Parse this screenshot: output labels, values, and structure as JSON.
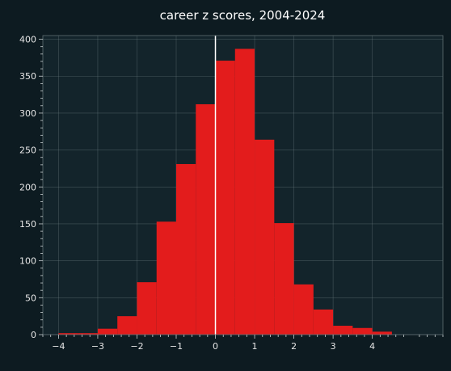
{
  "chart_data": {
    "type": "bar",
    "title": "career z scores, 2004-2024",
    "xlabel": "",
    "ylabel": "",
    "xlim": [
      -4.4,
      5.8
    ],
    "ylim": [
      0,
      405
    ],
    "x_ticks": [
      "−4",
      "−3",
      "−2",
      "−1",
      "0",
      "1",
      "2",
      "3",
      "4"
    ],
    "x_tick_values": [
      -4,
      -3,
      -2,
      -1,
      0,
      1,
      2,
      3,
      4
    ],
    "y_ticks": [
      "0",
      "50",
      "100",
      "150",
      "200",
      "250",
      "300",
      "350",
      "400"
    ],
    "y_tick_values": [
      0,
      50,
      100,
      150,
      200,
      250,
      300,
      350,
      400
    ],
    "grid": true,
    "reference_line_x": 0,
    "bin_width": 0.5,
    "bins": [
      {
        "x0": -4.0,
        "x1": -3.5,
        "count": 2
      },
      {
        "x0": -3.5,
        "x1": -3.0,
        "count": 2
      },
      {
        "x0": -3.0,
        "x1": -2.5,
        "count": 8
      },
      {
        "x0": -2.5,
        "x1": -2.0,
        "count": 25
      },
      {
        "x0": -2.0,
        "x1": -1.5,
        "count": 71
      },
      {
        "x0": -1.5,
        "x1": -1.0,
        "count": 153
      },
      {
        "x0": -1.0,
        "x1": -0.5,
        "count": 231
      },
      {
        "x0": -0.5,
        "x1": 0.0,
        "count": 312
      },
      {
        "x0": 0.0,
        "x1": 0.5,
        "count": 371
      },
      {
        "x0": 0.5,
        "x1": 1.0,
        "count": 387
      },
      {
        "x0": 1.0,
        "x1": 1.5,
        "count": 264
      },
      {
        "x0": 1.5,
        "x1": 2.0,
        "count": 151
      },
      {
        "x0": 2.0,
        "x1": 2.5,
        "count": 68
      },
      {
        "x0": 2.5,
        "x1": 3.0,
        "count": 34
      },
      {
        "x0": 3.0,
        "x1": 3.5,
        "count": 12
      },
      {
        "x0": 3.5,
        "x1": 4.0,
        "count": 9
      },
      {
        "x0": 4.0,
        "x1": 4.5,
        "count": 4
      }
    ],
    "colors": {
      "bar": "#e31c1c",
      "background": "#0d1b21",
      "plot_background": "#13242b",
      "reference_line": "#ffffff"
    }
  }
}
